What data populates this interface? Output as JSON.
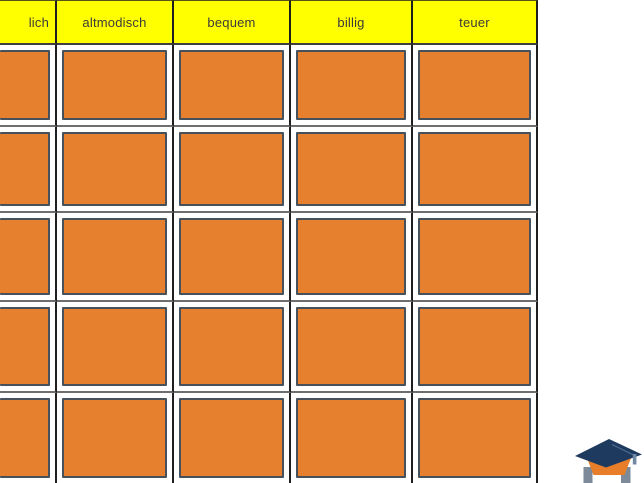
{
  "table": {
    "header": {
      "labels": [
        "lich",
        "altmodisch",
        "bequem",
        "billig",
        "teuer"
      ],
      "background": "#ffff00",
      "text_color": "#3a3a3a"
    },
    "grid": {
      "rows": 5,
      "columns": 5,
      "card_fill": "#e6802f",
      "card_border": "#47515c"
    }
  },
  "logo": {
    "name": "graduation-cap",
    "cap_color": "#1f3a5f",
    "band_color": "#e87d2a",
    "leg_color": "#7c8a9a",
    "tassel_color": "#6f89a4",
    "cord_color": "#4f6f92"
  }
}
